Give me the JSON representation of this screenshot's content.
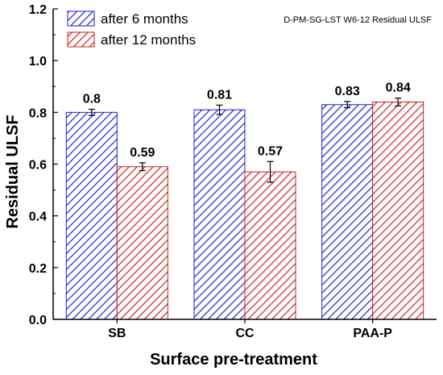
{
  "chart_data": {
    "type": "bar",
    "xlabel": "Surface pre-treatment",
    "ylabel": "Residual ULSF",
    "annotation": "D-PM-SG-LST W6-12 Residual ULSF",
    "categories": [
      "SB",
      "CC",
      "PAA-P"
    ],
    "ylim": [
      0.0,
      1.2
    ],
    "yticks": [
      "0.0",
      "0.2",
      "0.4",
      "0.6",
      "0.8",
      "1.0",
      "1.2"
    ],
    "grid": false,
    "legend_position": "top-left",
    "series": [
      {
        "name": "after 6 months",
        "values": [
          0.8,
          0.81,
          0.83
        ],
        "errors": [
          0.012,
          0.018,
          0.012
        ],
        "labels": [
          "0.8",
          "0.81",
          "0.83"
        ],
        "color": "#1f1fd0",
        "hatch": "diagonal"
      },
      {
        "name": "after 12 months",
        "values": [
          0.59,
          0.57,
          0.84
        ],
        "errors": [
          0.015,
          0.04,
          0.015
        ],
        "labels": [
          "0.59",
          "0.57",
          "0.84"
        ],
        "color": "#d01f1f",
        "hatch": "diagonal"
      }
    ]
  }
}
